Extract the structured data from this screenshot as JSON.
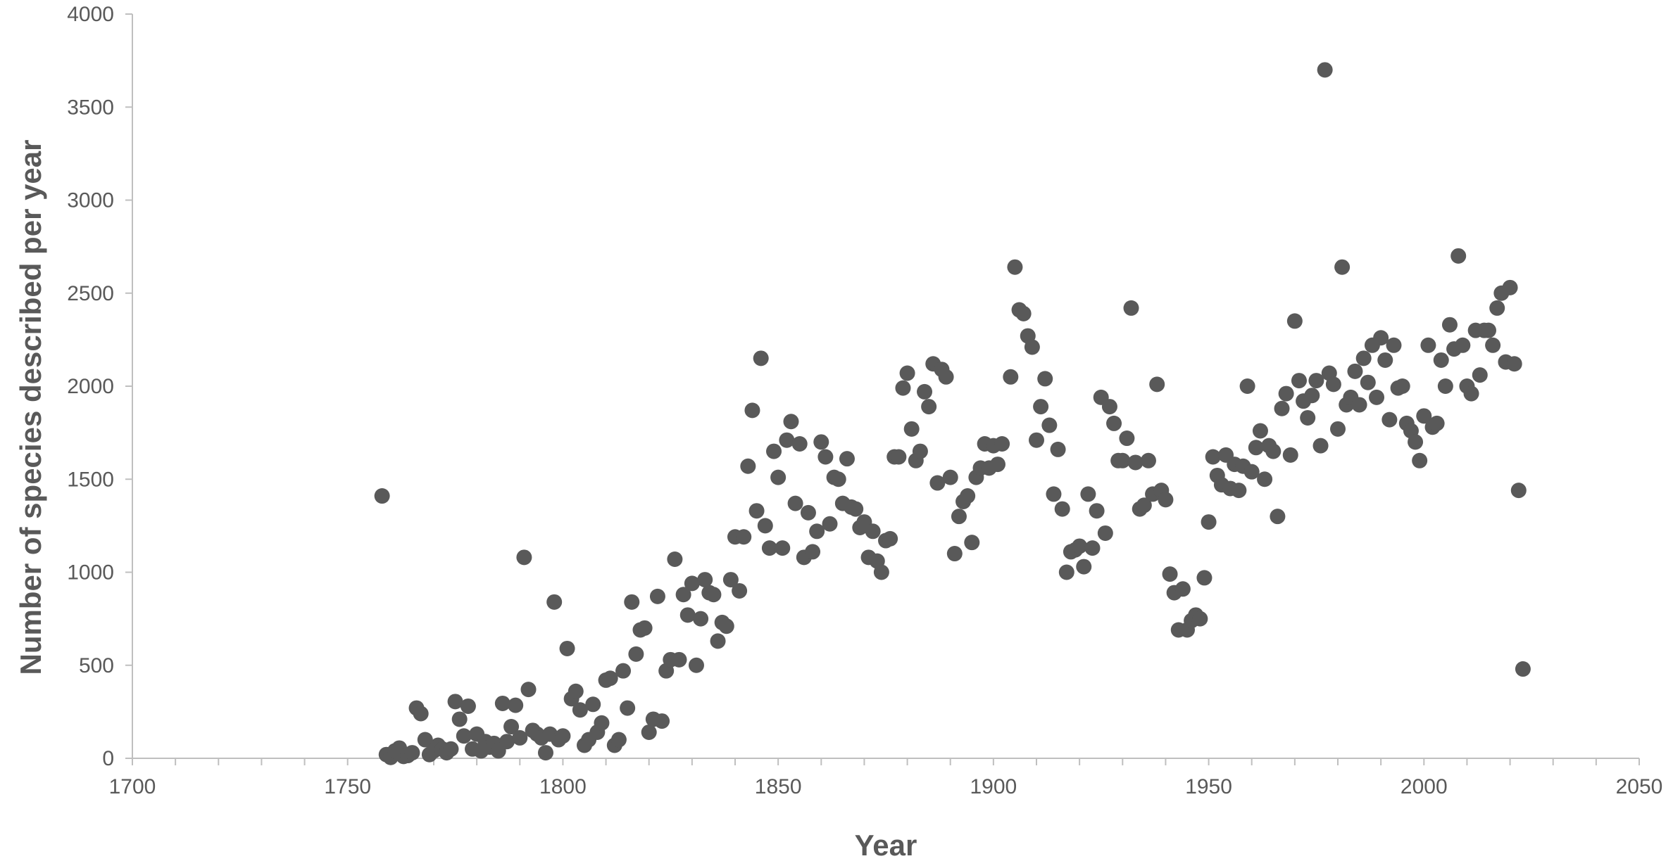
{
  "chart_data": {
    "type": "scatter",
    "title": "",
    "xlabel": "Year",
    "ylabel": "Number of species described per year",
    "xlim": [
      1700,
      2050
    ],
    "ylim": [
      0,
      4000
    ],
    "xticks": [
      1700,
      1750,
      1800,
      1850,
      1900,
      1950,
      2000,
      2050
    ],
    "yticks": [
      0,
      500,
      1000,
      1500,
      2000,
      2500,
      3000,
      3500,
      4000
    ],
    "grid": false,
    "legend": "none",
    "marker_color": "#595959",
    "axis_color": "#bfbfbf",
    "text_color": "#595959",
    "points": [
      [
        1758,
        1410
      ],
      [
        1759,
        20
      ],
      [
        1760,
        5
      ],
      [
        1761,
        40
      ],
      [
        1762,
        55
      ],
      [
        1763,
        10
      ],
      [
        1764,
        15
      ],
      [
        1765,
        30
      ],
      [
        1766,
        270
      ],
      [
        1767,
        240
      ],
      [
        1768,
        100
      ],
      [
        1769,
        20
      ],
      [
        1770,
        40
      ],
      [
        1771,
        70
      ],
      [
        1772,
        50
      ],
      [
        1773,
        30
      ],
      [
        1774,
        50
      ],
      [
        1775,
        305
      ],
      [
        1776,
        210
      ],
      [
        1777,
        120
      ],
      [
        1778,
        280
      ],
      [
        1779,
        50
      ],
      [
        1780,
        130
      ],
      [
        1781,
        40
      ],
      [
        1782,
        90
      ],
      [
        1783,
        60
      ],
      [
        1784,
        80
      ],
      [
        1785,
        40
      ],
      [
        1786,
        295
      ],
      [
        1787,
        90
      ],
      [
        1788,
        170
      ],
      [
        1789,
        285
      ],
      [
        1790,
        110
      ],
      [
        1791,
        1080
      ],
      [
        1792,
        370
      ],
      [
        1793,
        150
      ],
      [
        1794,
        130
      ],
      [
        1795,
        110
      ],
      [
        1796,
        30
      ],
      [
        1797,
        130
      ],
      [
        1798,
        840
      ],
      [
        1799,
        100
      ],
      [
        1800,
        120
      ],
      [
        1801,
        590
      ],
      [
        1802,
        320
      ],
      [
        1803,
        360
      ],
      [
        1804,
        260
      ],
      [
        1805,
        70
      ],
      [
        1806,
        100
      ],
      [
        1807,
        290
      ],
      [
        1808,
        140
      ],
      [
        1809,
        190
      ],
      [
        1810,
        420
      ],
      [
        1811,
        430
      ],
      [
        1812,
        70
      ],
      [
        1813,
        100
      ],
      [
        1814,
        470
      ],
      [
        1815,
        270
      ],
      [
        1816,
        840
      ],
      [
        1817,
        560
      ],
      [
        1818,
        690
      ],
      [
        1819,
        700
      ],
      [
        1820,
        140
      ],
      [
        1821,
        210
      ],
      [
        1822,
        870
      ],
      [
        1823,
        200
      ],
      [
        1824,
        470
      ],
      [
        1825,
        530
      ],
      [
        1826,
        1070
      ],
      [
        1827,
        530
      ],
      [
        1828,
        880
      ],
      [
        1829,
        770
      ],
      [
        1830,
        940
      ],
      [
        1831,
        500
      ],
      [
        1832,
        750
      ],
      [
        1833,
        960
      ],
      [
        1834,
        890
      ],
      [
        1835,
        880
      ],
      [
        1836,
        630
      ],
      [
        1837,
        730
      ],
      [
        1838,
        710
      ],
      [
        1839,
        960
      ],
      [
        1840,
        1190
      ],
      [
        1841,
        900
      ],
      [
        1842,
        1190
      ],
      [
        1843,
        1570
      ],
      [
        1844,
        1870
      ],
      [
        1845,
        1330
      ],
      [
        1846,
        2150
      ],
      [
        1847,
        1250
      ],
      [
        1848,
        1130
      ],
      [
        1849,
        1650
      ],
      [
        1850,
        1510
      ],
      [
        1851,
        1130
      ],
      [
        1852,
        1710
      ],
      [
        1853,
        1810
      ],
      [
        1854,
        1370
      ],
      [
        1855,
        1690
      ],
      [
        1856,
        1080
      ],
      [
        1857,
        1320
      ],
      [
        1858,
        1110
      ],
      [
        1859,
        1220
      ],
      [
        1860,
        1700
      ],
      [
        1861,
        1620
      ],
      [
        1862,
        1260
      ],
      [
        1863,
        1510
      ],
      [
        1864,
        1500
      ],
      [
        1865,
        1370
      ],
      [
        1866,
        1610
      ],
      [
        1867,
        1350
      ],
      [
        1868,
        1340
      ],
      [
        1869,
        1240
      ],
      [
        1870,
        1270
      ],
      [
        1871,
        1080
      ],
      [
        1872,
        1220
      ],
      [
        1873,
        1060
      ],
      [
        1874,
        1000
      ],
      [
        1875,
        1170
      ],
      [
        1876,
        1180
      ],
      [
        1877,
        1620
      ],
      [
        1878,
        1620
      ],
      [
        1879,
        1990
      ],
      [
        1880,
        2070
      ],
      [
        1881,
        1770
      ],
      [
        1882,
        1600
      ],
      [
        1883,
        1650
      ],
      [
        1884,
        1970
      ],
      [
        1885,
        1890
      ],
      [
        1886,
        2120
      ],
      [
        1887,
        1480
      ],
      [
        1888,
        2090
      ],
      [
        1889,
        2050
      ],
      [
        1890,
        1510
      ],
      [
        1891,
        1100
      ],
      [
        1892,
        1300
      ],
      [
        1893,
        1380
      ],
      [
        1894,
        1410
      ],
      [
        1895,
        1160
      ],
      [
        1896,
        1510
      ],
      [
        1897,
        1560
      ],
      [
        1898,
        1690
      ],
      [
        1899,
        1560
      ],
      [
        1900,
        1680
      ],
      [
        1901,
        1580
      ],
      [
        1902,
        1690
      ],
      [
        1904,
        2050
      ],
      [
        1905,
        2640
      ],
      [
        1906,
        2410
      ],
      [
        1907,
        2390
      ],
      [
        1908,
        2270
      ],
      [
        1909,
        2210
      ],
      [
        1910,
        1710
      ],
      [
        1911,
        1890
      ],
      [
        1912,
        2040
      ],
      [
        1913,
        1790
      ],
      [
        1914,
        1420
      ],
      [
        1915,
        1660
      ],
      [
        1916,
        1340
      ],
      [
        1917,
        1000
      ],
      [
        1918,
        1110
      ],
      [
        1919,
        1120
      ],
      [
        1920,
        1140
      ],
      [
        1921,
        1030
      ],
      [
        1922,
        1420
      ],
      [
        1923,
        1130
      ],
      [
        1924,
        1330
      ],
      [
        1925,
        1940
      ],
      [
        1926,
        1210
      ],
      [
        1927,
        1890
      ],
      [
        1928,
        1800
      ],
      [
        1929,
        1600
      ],
      [
        1930,
        1600
      ],
      [
        1931,
        1720
      ],
      [
        1932,
        2420
      ],
      [
        1933,
        1590
      ],
      [
        1934,
        1340
      ],
      [
        1935,
        1360
      ],
      [
        1936,
        1600
      ],
      [
        1937,
        1420
      ],
      [
        1938,
        2010
      ],
      [
        1939,
        1440
      ],
      [
        1940,
        1390
      ],
      [
        1941,
        990
      ],
      [
        1942,
        890
      ],
      [
        1943,
        690
      ],
      [
        1944,
        910
      ],
      [
        1945,
        690
      ],
      [
        1946,
        740
      ],
      [
        1947,
        770
      ],
      [
        1948,
        750
      ],
      [
        1949,
        970
      ],
      [
        1950,
        1270
      ],
      [
        1951,
        1620
      ],
      [
        1952,
        1520
      ],
      [
        1953,
        1470
      ],
      [
        1954,
        1630
      ],
      [
        1955,
        1450
      ],
      [
        1956,
        1580
      ],
      [
        1957,
        1440
      ],
      [
        1958,
        1570
      ],
      [
        1959,
        2000
      ],
      [
        1960,
        1540
      ],
      [
        1961,
        1670
      ],
      [
        1962,
        1760
      ],
      [
        1963,
        1500
      ],
      [
        1964,
        1680
      ],
      [
        1965,
        1650
      ],
      [
        1966,
        1300
      ],
      [
        1967,
        1880
      ],
      [
        1968,
        1960
      ],
      [
        1969,
        1630
      ],
      [
        1970,
        2350
      ],
      [
        1971,
        2030
      ],
      [
        1972,
        1920
      ],
      [
        1973,
        1830
      ],
      [
        1974,
        1950
      ],
      [
        1975,
        2030
      ],
      [
        1976,
        1680
      ],
      [
        1977,
        3700
      ],
      [
        1978,
        2070
      ],
      [
        1979,
        2010
      ],
      [
        1980,
        1770
      ],
      [
        1981,
        2640
      ],
      [
        1982,
        1900
      ],
      [
        1983,
        1940
      ],
      [
        1984,
        2080
      ],
      [
        1985,
        1900
      ],
      [
        1986,
        2150
      ],
      [
        1987,
        2020
      ],
      [
        1988,
        2220
      ],
      [
        1989,
        1940
      ],
      [
        1990,
        2260
      ],
      [
        1991,
        2140
      ],
      [
        1992,
        1820
      ],
      [
        1993,
        2220
      ],
      [
        1994,
        1990
      ],
      [
        1995,
        2000
      ],
      [
        1996,
        1800
      ],
      [
        1997,
        1760
      ],
      [
        1998,
        1700
      ],
      [
        1999,
        1600
      ],
      [
        2000,
        1840
      ],
      [
        2001,
        2220
      ],
      [
        2002,
        1780
      ],
      [
        2003,
        1800
      ],
      [
        2004,
        2140
      ],
      [
        2005,
        2000
      ],
      [
        2006,
        2330
      ],
      [
        2007,
        2200
      ],
      [
        2008,
        2700
      ],
      [
        2009,
        2220
      ],
      [
        2010,
        2000
      ],
      [
        2011,
        1960
      ],
      [
        2012,
        2300
      ],
      [
        2013,
        2060
      ],
      [
        2014,
        2300
      ],
      [
        2015,
        2300
      ],
      [
        2016,
        2220
      ],
      [
        2017,
        2420
      ],
      [
        2018,
        2500
      ],
      [
        2019,
        2130
      ],
      [
        2020,
        2530
      ],
      [
        2021,
        2120
      ],
      [
        2022,
        1440
      ],
      [
        2023,
        480
      ]
    ]
  }
}
